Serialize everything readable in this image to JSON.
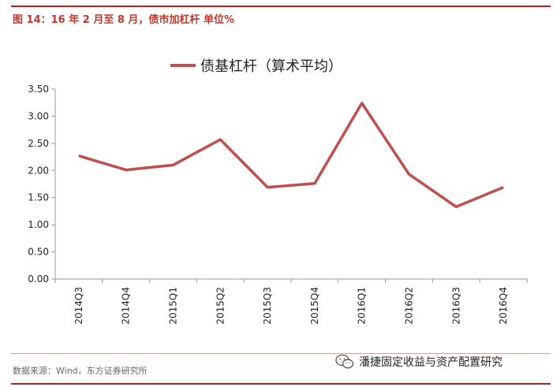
{
  "figure": {
    "title": "图 14：16 年 2 月至 8 月，债市加杠杆 单位%",
    "source": "数据来源：Wind，东方证券研究所",
    "watermark": "潘捷固定收益与资产配置研究"
  },
  "colors": {
    "accent": "#b22222",
    "series": "#c0504d",
    "axis": "#9a9a9a"
  },
  "chart_data": {
    "type": "line",
    "categories": [
      "2014Q3",
      "2014Q4",
      "2015Q1",
      "2015Q2",
      "2015Q3",
      "2015Q4",
      "2016Q1",
      "2016Q2",
      "2016Q3",
      "2016Q4"
    ],
    "series": [
      {
        "name": "债基杠杆（算术平均）",
        "values": [
          2.27,
          2.01,
          2.1,
          2.57,
          1.69,
          1.76,
          3.24,
          1.93,
          1.33,
          1.69
        ]
      }
    ],
    "ylim": [
      0,
      3.5
    ],
    "yticks": [
      "0.00",
      "0.50",
      "1.00",
      "1.50",
      "2.00",
      "2.50",
      "3.00",
      "3.50"
    ],
    "legend_position": "top-center",
    "grid": false
  }
}
